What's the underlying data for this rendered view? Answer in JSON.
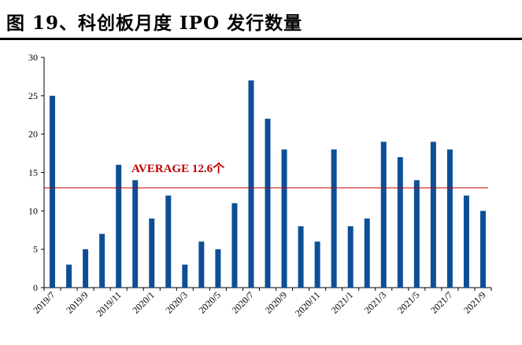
{
  "title": "图 19、科创板月度 IPO 发行数量",
  "chart_data": {
    "type": "bar",
    "categories": [
      "2019/7",
      "2019/8",
      "2019/9",
      "2019/10",
      "2019/11",
      "2019/12",
      "2020/1",
      "2020/2",
      "2020/3",
      "2020/4",
      "2020/5",
      "2020/6",
      "2020/7",
      "2020/8",
      "2020/9",
      "2020/10",
      "2020/11",
      "2020/12",
      "2021/1",
      "2021/2",
      "2021/3",
      "2021/4",
      "2021/5",
      "2021/6",
      "2021/7",
      "2021/8",
      "2021/9"
    ],
    "tick_labels": [
      "2019/7",
      "2019/9",
      "2019/11",
      "2020/1",
      "2020/3",
      "2020/5",
      "2020/7",
      "2020/9",
      "2020/11",
      "2021/1",
      "2021/3",
      "2021/5",
      "2021/7",
      "2021/9"
    ],
    "values": [
      25,
      3,
      5,
      7,
      16,
      14,
      9,
      12,
      3,
      6,
      5,
      11,
      27,
      22,
      18,
      8,
      6,
      18,
      8,
      9,
      19,
      17,
      14,
      19,
      18,
      12,
      10
    ],
    "ylim": [
      0,
      30
    ],
    "yticks": [
      0,
      5,
      10,
      15,
      20,
      25,
      30
    ],
    "average": {
      "value": 12.6,
      "label": "AVERAGE 12.6个",
      "color": "#c00000"
    },
    "bar_color": "#0d4f96",
    "grid": false
  }
}
